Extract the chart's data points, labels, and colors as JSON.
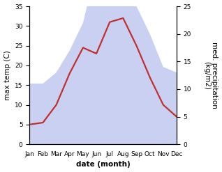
{
  "months": [
    "Jan",
    "Feb",
    "Mar",
    "Apr",
    "May",
    "Jun",
    "Jul",
    "Aug",
    "Sep",
    "Oct",
    "Nov",
    "Dec"
  ],
  "temp": [
    5,
    5.5,
    10,
    18,
    24.5,
    23,
    31,
    32,
    25,
    17,
    10,
    7
  ],
  "precip": [
    11,
    11,
    13,
    17,
    22,
    32,
    28,
    33,
    25,
    20,
    14,
    13
  ],
  "temp_color": "#c03030",
  "precip_fill_color": "#c0c8f0",
  "precip_fill_alpha": 0.85,
  "left_ylim": [
    0,
    35
  ],
  "left_yticks": [
    0,
    5,
    10,
    15,
    20,
    25,
    30,
    35
  ],
  "right_ylim": [
    0,
    25
  ],
  "right_yticks": [
    0,
    5,
    10,
    15,
    20,
    25
  ],
  "xlabel": "date (month)",
  "ylabel_left": "max temp (C)",
  "ylabel_right": "med. precipitation\n(kg/m2)",
  "label_fontsize": 7.5,
  "tick_fontsize": 6.5,
  "linewidth": 1.6
}
